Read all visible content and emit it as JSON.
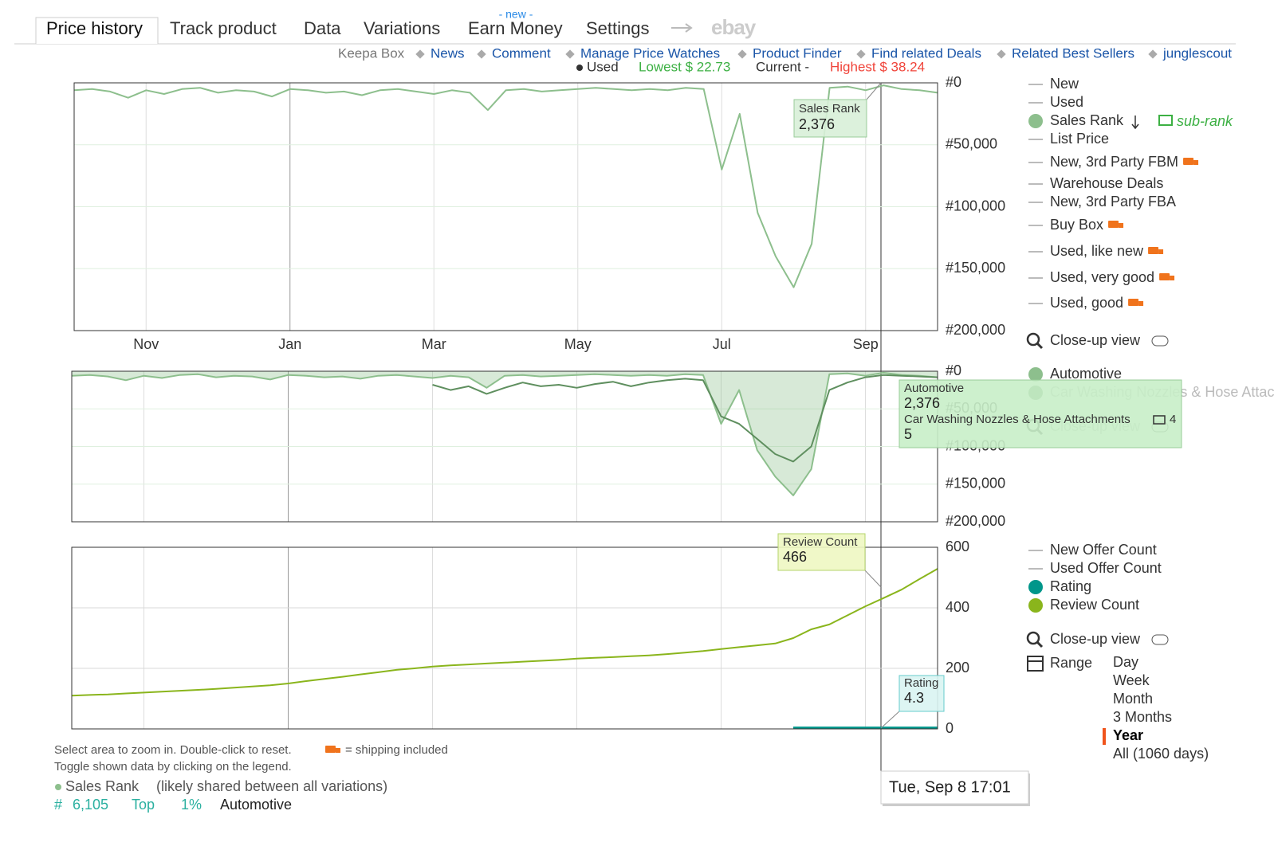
{
  "tabs": {
    "items": [
      "Price history",
      "Track product",
      "Data",
      "Variations",
      "Earn Money",
      "Settings"
    ],
    "new_badge": "- new -",
    "ebay": "ebay"
  },
  "links": [
    "Keepa Box",
    "News",
    "Comment",
    "Manage Price Watches",
    "Product Finder",
    "Find related Deals",
    "Related Best Sellers",
    "junglescout"
  ],
  "price_summary": [
    "Used",
    "Lowest $ 22.73",
    "Current -",
    "Highest $ 38.24"
  ],
  "chart_data": [
    {
      "type": "line",
      "y_inverted": true,
      "grid": true,
      "categories": [
        null,
        null,
        null,
        null,
        "Nov",
        null,
        null,
        null,
        null,
        null,
        null,
        null,
        "Jan",
        null,
        null,
        null,
        null,
        null,
        null,
        null,
        "Mar",
        null,
        null,
        null,
        null,
        null,
        null,
        null,
        "May",
        null,
        null,
        null,
        null,
        null,
        null,
        null,
        "Jul",
        null,
        null,
        null,
        null,
        null,
        null,
        null,
        "Sep",
        null,
        null,
        null,
        null
      ],
      "ylim": [
        0,
        200000
      ],
      "yticks": [
        {
          "value": 0,
          "label": "#0"
        },
        {
          "value": 50000,
          "label": "#50,000"
        },
        {
          "value": 100000,
          "label": "#100,000"
        },
        {
          "value": 150000,
          "label": "#150,000"
        },
        {
          "value": 200000,
          "label": "#200,000"
        }
      ],
      "series": [
        {
          "name": "Sales Rank",
          "color": "#8dbf8d",
          "values": [
            6000,
            5000,
            7000,
            12000,
            6000,
            9000,
            5000,
            4000,
            8000,
            6000,
            7000,
            11000,
            5000,
            6000,
            8000,
            7000,
            10000,
            6000,
            5000,
            7000,
            9000,
            6000,
            8000,
            22000,
            6000,
            5000,
            7000,
            6000,
            5000,
            4000,
            5000,
            6000,
            5000,
            6000,
            4000,
            5000,
            70000,
            25000,
            105000,
            140000,
            165000,
            130000,
            4000,
            3000,
            6000,
            2000,
            5000,
            6000,
            8000
          ]
        }
      ]
    },
    {
      "type": "area",
      "y_inverted": true,
      "grid": true,
      "ylim": [
        0,
        200000
      ],
      "yticks": [
        {
          "value": 0,
          "label": "#0"
        },
        {
          "value": 50000,
          "label": "#50,000"
        },
        {
          "value": 100000,
          "label": "#100,000"
        },
        {
          "value": 150000,
          "label": "#150,000"
        },
        {
          "value": 200000,
          "label": "#200,000"
        }
      ],
      "series": [
        {
          "name": "Automotive",
          "color": "#8dbf8d",
          "fill": true,
          "values": [
            6000,
            5000,
            7000,
            12000,
            6000,
            9000,
            5000,
            4000,
            8000,
            6000,
            7000,
            11000,
            5000,
            6000,
            8000,
            7000,
            10000,
            6000,
            5000,
            7000,
            9000,
            6000,
            8000,
            22000,
            6000,
            5000,
            7000,
            6000,
            5000,
            4000,
            5000,
            6000,
            5000,
            6000,
            4000,
            5000,
            70000,
            25000,
            105000,
            140000,
            165000,
            130000,
            4000,
            3000,
            6000,
            2000,
            5000,
            6000,
            8000
          ]
        },
        {
          "name": "Car Washing Nozzles & Hose Attachments",
          "color": "#5f8f5f",
          "fill": false,
          "values": [
            null,
            null,
            null,
            null,
            null,
            null,
            null,
            null,
            null,
            null,
            null,
            null,
            null,
            null,
            null,
            null,
            null,
            null,
            null,
            null,
            18000,
            25000,
            20000,
            30000,
            22000,
            15000,
            20000,
            18000,
            22000,
            17000,
            14000,
            20000,
            15000,
            12000,
            10000,
            12000,
            60000,
            70000,
            90000,
            110000,
            120000,
            100000,
            25000,
            15000,
            8000,
            5000,
            6000,
            7000,
            8000
          ]
        }
      ]
    },
    {
      "type": "line",
      "y_inverted": false,
      "grid": true,
      "ylim": [
        0,
        600
      ],
      "yticks": [
        0,
        200,
        400,
        600
      ],
      "series": [
        {
          "name": "Rating",
          "color": "#00968a",
          "values": [
            null,
            null,
            null,
            null,
            null,
            null,
            null,
            null,
            null,
            null,
            null,
            null,
            null,
            null,
            null,
            null,
            null,
            null,
            null,
            null,
            null,
            null,
            null,
            null,
            null,
            null,
            null,
            null,
            null,
            null,
            null,
            null,
            null,
            null,
            null,
            null,
            null,
            null,
            null,
            null,
            4.3,
            4.3,
            4.3,
            4.3,
            4.3,
            4.3,
            4.3,
            4.3,
            4.3
          ]
        },
        {
          "name": "Review Count",
          "color": "#8ab51c",
          "values": [
            110,
            112,
            114,
            117,
            120,
            123,
            126,
            129,
            132,
            136,
            140,
            144,
            150,
            158,
            165,
            172,
            180,
            187,
            195,
            200,
            206,
            210,
            213,
            216,
            219,
            222,
            225,
            228,
            232,
            235,
            237,
            240,
            243,
            247,
            252,
            257,
            264,
            270,
            276,
            282,
            300,
            329,
            345,
            375,
            405,
            432,
            460,
            495,
            529
          ]
        }
      ]
    }
  ],
  "legend_main": [
    "New",
    "Used",
    "Sales Rank",
    "List Price",
    "New, 3rd Party FBM",
    "Warehouse Deals",
    "New, 3rd Party FBA",
    "Buy Box",
    "Used, like new",
    "Used, very good",
    "Used, good"
  ],
  "sub_rank": "sub-rank",
  "close_up": "Close-up view",
  "legend_counts": [
    "New Offer Count",
    "Used Offer Count"
  ],
  "range": {
    "label": "Range",
    "options": [
      "Day",
      "Week",
      "Month",
      "3 Months",
      "Year",
      "All (1060 days)"
    ],
    "selected": 4
  },
  "tooltips": {
    "sales_rank": [
      "Sales Rank",
      "2,376"
    ],
    "ranks": [
      "Automotive",
      "2,376",
      "Car Washing Nozzles & Hose Attachments",
      "4",
      "5"
    ],
    "review": [
      "Review Count",
      "466"
    ],
    "rating": [
      "Rating",
      "4.3"
    ],
    "date": "Tue, Sep 8 17:01"
  },
  "footer": {
    "hint1": "Select area to zoom in. Double-click to reset.",
    "shipping": "= shipping included",
    "hint2": "Toggle shown data by clicking on the legend.",
    "rank_label": "Sales Rank",
    "rank_note": "(likely shared between all variations)",
    "rank_stats": [
      "#",
      "6,105",
      "Top",
      "1%",
      "Automotive"
    ]
  }
}
